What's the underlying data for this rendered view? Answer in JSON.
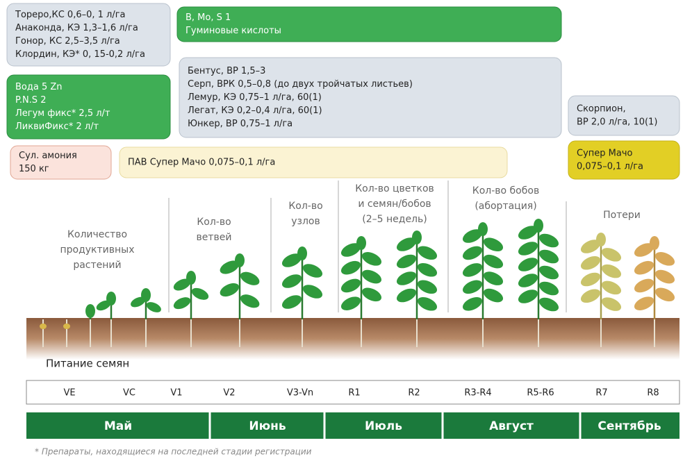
{
  "boxes": [
    {
      "lines": [
        "Тореро,КС 0,6–0, 1 л/га",
        "Анаконда, КЭ 1,3–1,6 л/га",
        "Гонор, КС 2,5–3,5 л/га",
        "Клордин, КЭ* 0, 15-0,2 л/га"
      ]
    },
    {
      "lines": [
        "B, Mo, S 1",
        "Гуминовые кислоты"
      ]
    },
    {
      "lines": [
        "Вода 5 Zn",
        "P.N.S  2",
        "Легум фикс* 2,5 л/т",
        "ЛиквиФикс* 2 л/т"
      ]
    },
    {
      "lines": [
        "Бентус, ВР 1,5–3",
        "Серп, ВРК 0,5–0,8 (до двух тройчатых листьев)",
        "Лемур, КЭ 0,75–1 л/га, 60(1)",
        "Легат, КЭ 0,2–0,4 л/га, 60(1)",
        "Юнкер, ВР 0,75–1 л/га"
      ]
    },
    {
      "lines": [
        "Скорпион,",
        "ВР 2,0 л/га, 10(1)"
      ]
    },
    {
      "lines": [
        "Сул. амония",
        "150 кг"
      ]
    },
    {
      "lines": [
        "ПАВ Супер Мачо 0,075–0,1 л/га"
      ]
    },
    {
      "lines": [
        "Супер Мачо",
        "0,075–0,1 л/га"
      ]
    }
  ],
  "headings": [
    {
      "lines": [
        "Количество",
        "продуктивных",
        "растений"
      ]
    },
    {
      "lines": [
        "Кол-во",
        "ветвей"
      ]
    },
    {
      "lines": [
        "Кол-во",
        "узлов"
      ]
    },
    {
      "lines": [
        "Кол-во цветков",
        "и семян/бобов",
        "(2–5 недель)"
      ]
    },
    {
      "lines": [
        "Кол-во бобов",
        "(абортация)"
      ]
    },
    {
      "lines": [
        "Потери"
      ]
    }
  ],
  "seed_nutrition": "Питание семян",
  "stages": [
    "VE",
    "VC",
    "V1",
    "V2",
    "V3-Vn",
    "R1",
    "R2",
    "R3-R4",
    "R5-R6",
    "R7",
    "R8"
  ],
  "months": [
    "Май",
    "Июнь",
    "Июль",
    "Август",
    "Сентябрь"
  ],
  "footnote": "* Препараты, находящиеся на последней стадии регистрации"
}
